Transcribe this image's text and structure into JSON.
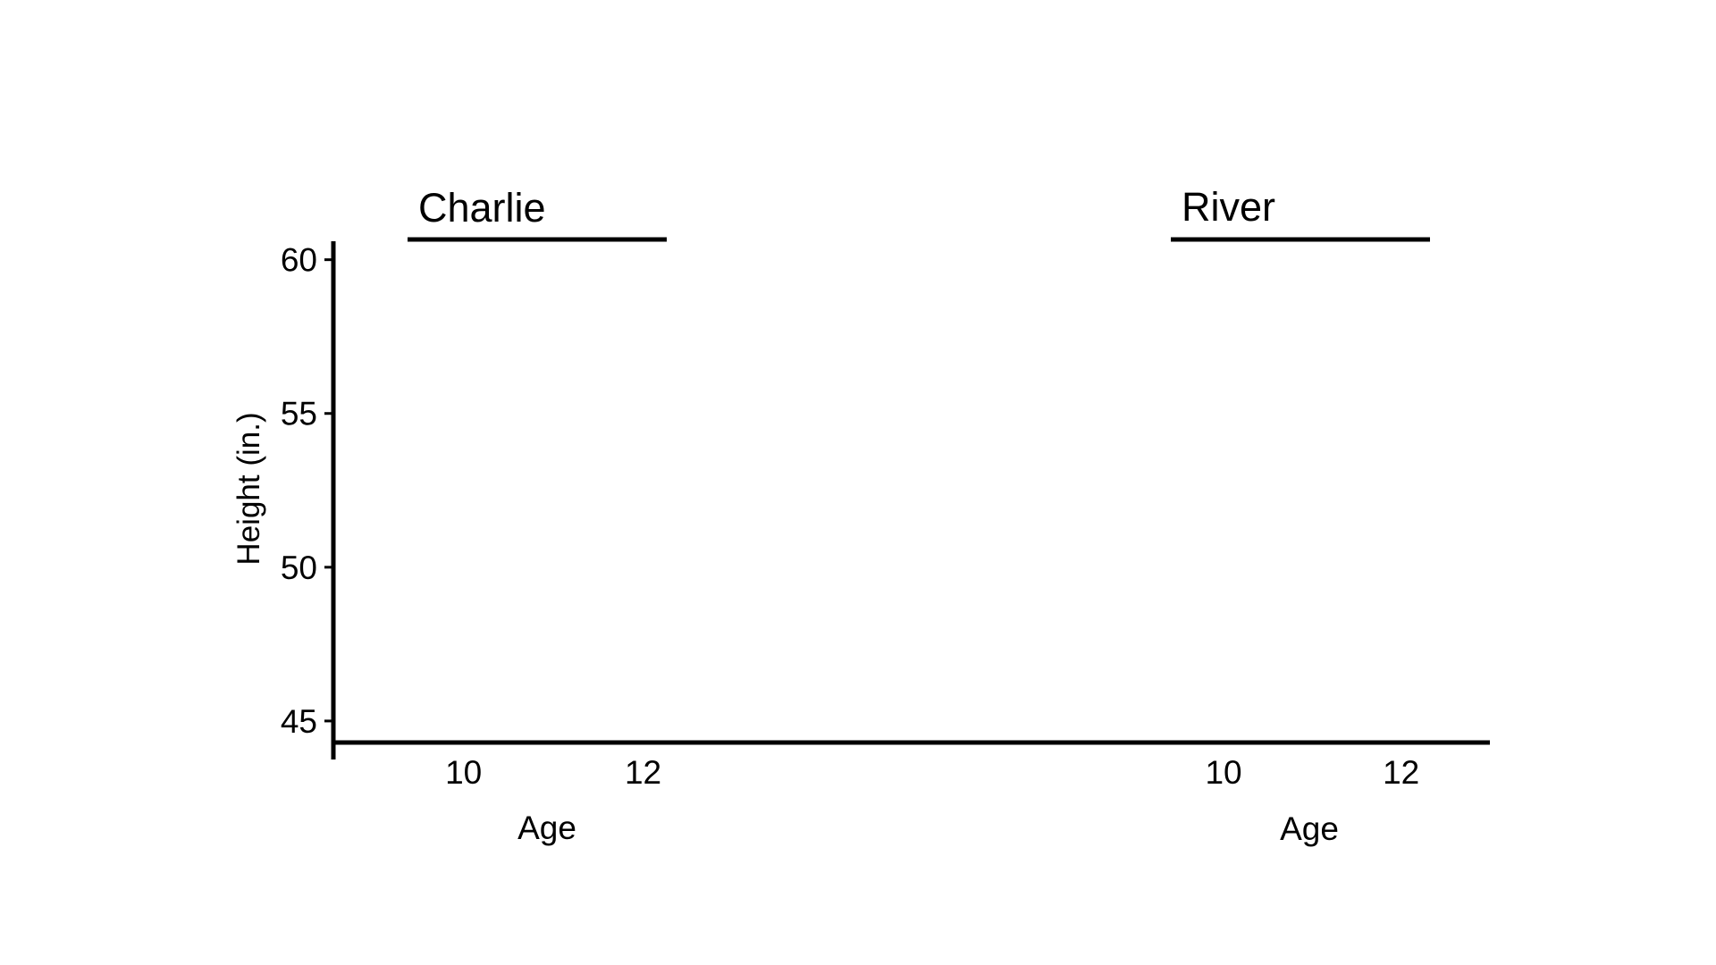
{
  "chart_data": {
    "type": "line",
    "ylabel": "Height (in.)",
    "yticks": [
      45,
      50,
      55,
      60
    ],
    "ylim": [
      44.3,
      60.6
    ],
    "grid": false,
    "legend": "none",
    "line_color": "#000000",
    "panels": [
      {
        "title": "Charlie",
        "xlabel": "Age",
        "xticks": [
          10,
          12
        ],
        "xlim": [
          8.55,
          13.0
        ],
        "series": [],
        "values": []
      },
      {
        "title": "River",
        "xlabel": "Age",
        "xticks": [
          10,
          12
        ],
        "xlim": [
          8.55,
          13.0
        ],
        "series": [],
        "values": []
      }
    ]
  }
}
